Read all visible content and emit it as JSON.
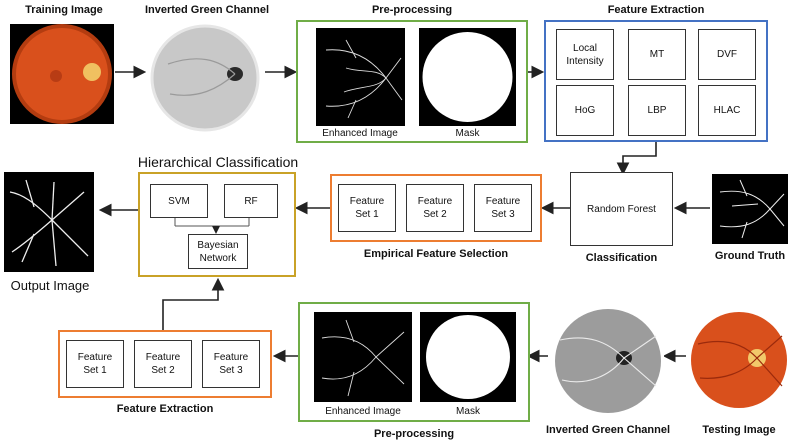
{
  "training": {
    "title": "Training Image",
    "inverted_title": "Inverted Green Channel",
    "preprocessing_title": "Pre-processing",
    "enhanced_caption": "Enhanced Image",
    "mask_caption": "Mask"
  },
  "feature_extraction": {
    "title": "Feature Extraction",
    "cells": [
      "Local\nIntensity",
      "MT",
      "DVF",
      "HoG",
      "LBP",
      "HLAC"
    ]
  },
  "ground_truth": {
    "caption": "Ground Truth"
  },
  "classification": {
    "box_label": "Random Forest",
    "caption": "Classification"
  },
  "empirical": {
    "caption": "Empirical Feature Selection",
    "sets": [
      "Feature\nSet 1",
      "Feature\nSet 2",
      "Feature\nSet 3"
    ]
  },
  "hierarchical": {
    "title": "Hierarchical Classification",
    "svm": "SVM",
    "rf": "RF",
    "bayesian": "Bayesian\nNetwork"
  },
  "output": {
    "caption": "Output Image"
  },
  "testing": {
    "title": "Testing Image",
    "inverted_caption": "Inverted Green Channel",
    "preprocessing_caption": "Pre-processing",
    "enhanced_caption": "Enhanced Image",
    "mask_caption": "Mask"
  },
  "test_feature_extraction": {
    "caption": "Feature Extraction",
    "sets": [
      "Feature\nSet 1",
      "Feature\nSet 2",
      "Feature\nSet 3"
    ]
  },
  "colors": {
    "green_frame": "#70ad47",
    "blue_frame": "#4472c4",
    "orange_frame": "#ed7d31",
    "gold_frame": "#c9a227",
    "fundus": "#d9501c"
  }
}
